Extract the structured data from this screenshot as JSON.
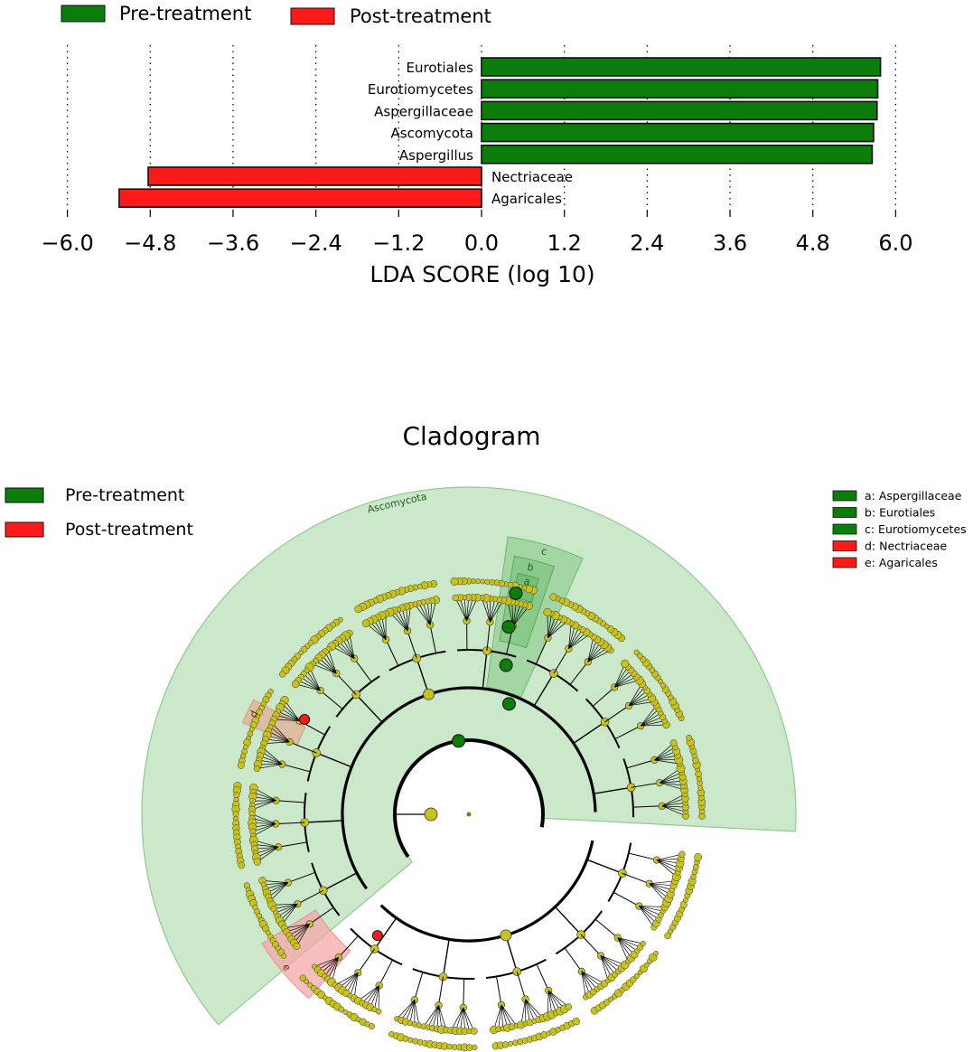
{
  "colors": {
    "pre": "#0a7d0a",
    "post": "#ff1a1a",
    "node": "#c8c21a",
    "pre_fill": "#9fd49f",
    "post_fill": "#f6a8a8"
  },
  "top_legend": [
    {
      "label": "Pre-treatment",
      "color": "#0a7d0a"
    },
    {
      "label": "Post-treatment",
      "color": "#ff1a1a"
    }
  ],
  "chart_data": [
    {
      "type": "bar",
      "orientation": "horizontal",
      "categories": [
        "Eurotiales",
        "Eurotiomycetes",
        "Aspergillaceae",
        "Ascomycota",
        "Aspergillus",
        "Nectriaceae",
        "Agaricales"
      ],
      "series": [
        {
          "name": "Pre-treatment",
          "values": [
            5.78,
            5.74,
            5.73,
            5.68,
            5.66,
            null,
            null
          ]
        },
        {
          "name": "Post-treatment",
          "values": [
            null,
            null,
            null,
            null,
            null,
            -4.83,
            -5.25
          ]
        }
      ],
      "xlabel": "LDA SCORE (log 10)",
      "ylabel": "",
      "xlim": [
        -6.0,
        6.0
      ],
      "xticks": [
        "−6.0",
        "−4.8",
        "−3.6",
        "−2.4",
        "−1.2",
        "0.0",
        "1.2",
        "2.4",
        "3.6",
        "4.8",
        "6.0"
      ],
      "xtick_values": [
        -6.0,
        -4.8,
        -3.6,
        -2.4,
        -1.2,
        0.0,
        1.2,
        2.4,
        3.6,
        4.8,
        6.0
      ],
      "grid": "vertical dotted",
      "legend": "top-left"
    }
  ],
  "cladogram": {
    "title": "Cladogram",
    "legend": [
      {
        "label": "Pre-treatment",
        "color": "#0a7d0a"
      },
      {
        "label": "Post-treatment",
        "color": "#ff1a1a"
      }
    ],
    "key": [
      {
        "label": "a: Aspergillaceae",
        "color": "#0a7d0a"
      },
      {
        "label": "b: Eurotiales",
        "color": "#0a7d0a"
      },
      {
        "label": "c: Eurotiomycetes",
        "color": "#0a7d0a"
      },
      {
        "label": "d: Nectriaceae",
        "color": "#ff1a1a"
      },
      {
        "label": "e: Agaricales",
        "color": "#ff1a1a"
      }
    ],
    "clade_labels": {
      "phylum": "Ascomycota",
      "a": "a",
      "b": "b",
      "c": "c",
      "d": "d",
      "e": "e"
    }
  }
}
